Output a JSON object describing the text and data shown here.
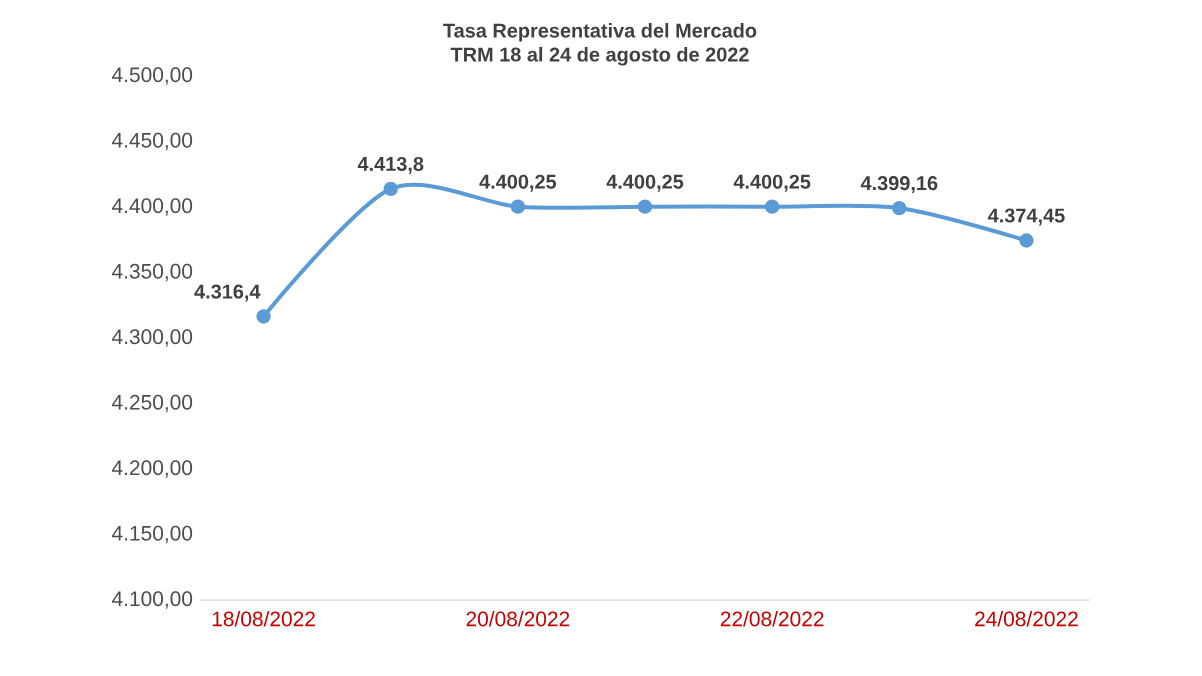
{
  "chart_data": {
    "type": "line",
    "title": "Tasa Representativa del Mercado",
    "subtitle": "TRM 18 al 24 de agosto de 2022",
    "categories": [
      "18/08/2022",
      null,
      "20/08/2022",
      null,
      "22/08/2022",
      null,
      "24/08/2022"
    ],
    "values": [
      4316.4,
      4413.8,
      4400.25,
      4400.25,
      4400.25,
      4399.16,
      4374.45
    ],
    "value_labels": [
      "4.316,4",
      "4.413,8",
      "4.400,25",
      "4.400,25",
      "4.400,25",
      "4.399,16",
      "4.374,45"
    ],
    "color": "#5b9bd5",
    "marker": "circle",
    "ylim": [
      4100,
      4500
    ],
    "yticks": [
      {
        "value": 4100,
        "label": "4.100,00"
      },
      {
        "value": 4150,
        "label": "4.150,00"
      },
      {
        "value": 4200,
        "label": "4.200,00"
      },
      {
        "value": 4250,
        "label": "4.250,00"
      },
      {
        "value": 4300,
        "label": "4.300,00"
      },
      {
        "value": 4350,
        "label": "4.350,00"
      },
      {
        "value": 4400,
        "label": "4.400,00"
      },
      {
        "value": 4450,
        "label": "4.450,00"
      },
      {
        "value": 4500,
        "label": "4.500,00"
      }
    ]
  }
}
